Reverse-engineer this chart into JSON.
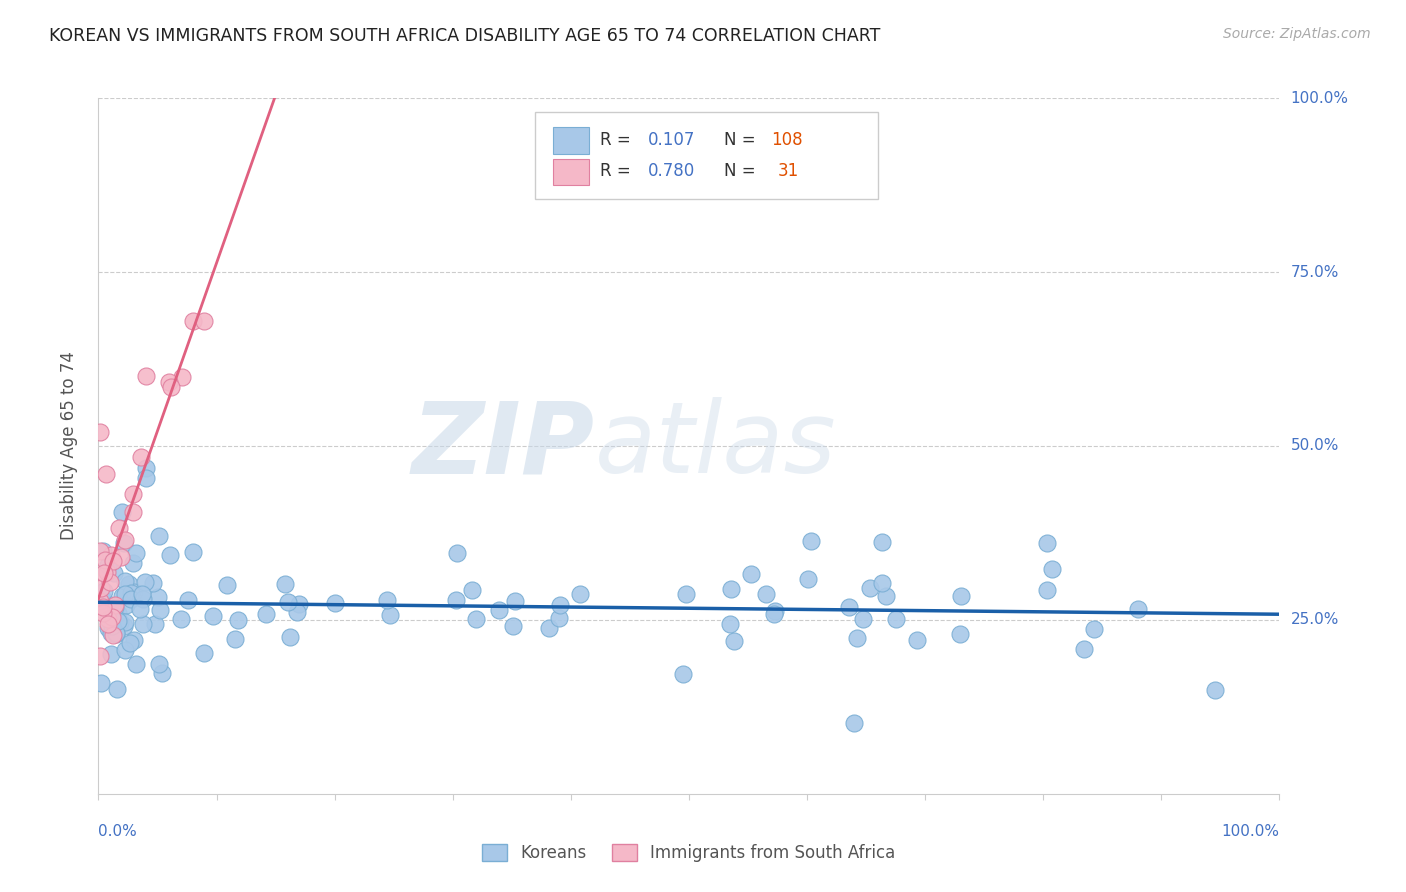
{
  "title": "KOREAN VS IMMIGRANTS FROM SOUTH AFRICA DISABILITY AGE 65 TO 74 CORRELATION CHART",
  "source": "Source: ZipAtlas.com",
  "ylabel": "Disability Age 65 to 74",
  "legend_label1": "Koreans",
  "legend_label2": "Immigrants from South Africa",
  "r1": "0.107",
  "n1": "108",
  "r2": "0.780",
  "n2": "31",
  "watermark_zip": "ZIP",
  "watermark_atlas": "atlas",
  "xlim": [
    0.0,
    1.0
  ],
  "ylim": [
    0.0,
    1.0
  ],
  "background_color": "#ffffff",
  "grid_color": "#cccccc",
  "blue_scatter_color": "#a8c8e8",
  "blue_scatter_edge": "#7aaed4",
  "blue_line_color": "#1a5fa8",
  "pink_scatter_color": "#f5b8c8",
  "pink_scatter_edge": "#e080a0",
  "pink_line_color": "#e06080",
  "title_color": "#222222",
  "source_color": "#aaaaaa",
  "ylabel_color": "#555555",
  "tick_color": "#4472c4",
  "legend_text_color_r": "#4472c4",
  "legend_text_color_n": "#e05000",
  "legend_label_color": "#555555"
}
